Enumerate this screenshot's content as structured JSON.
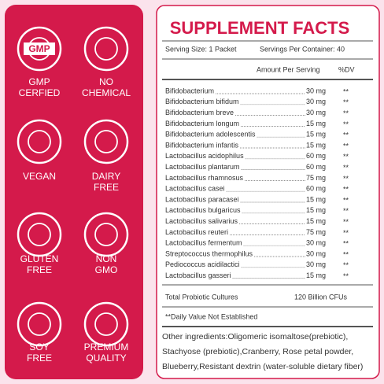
{
  "badges": [
    {
      "lines": [
        "GMP",
        "CERFIED"
      ],
      "icon_text": "GMP"
    },
    {
      "lines": [
        "NO",
        "CHEMICAL"
      ]
    },
    {
      "lines": [
        "VEGAN"
      ]
    },
    {
      "lines": [
        "DAIRY",
        "FREE"
      ]
    },
    {
      "lines": [
        "GLUTEN",
        "FREE"
      ]
    },
    {
      "lines": [
        "NON",
        "GMO"
      ]
    },
    {
      "lines": [
        "SOY",
        "FREE"
      ]
    },
    {
      "lines": [
        "PREMIUM",
        "QUALITY"
      ]
    }
  ],
  "facts": {
    "title": "SUPPLEMENT FACTS",
    "serving_size": "Serving Size: 1 Packet",
    "servings_per_container": "Servings Per Container: 40",
    "amount_header": "Amount Per Serving",
    "dv_header": "%DV",
    "rows": [
      [
        "Bifidobacterium",
        "30 mg",
        "**"
      ],
      [
        "Bifidobacterium bifidum",
        "30 mg",
        "**"
      ],
      [
        "Bifidobacterium breve",
        "30 mg",
        "**"
      ],
      [
        "Bifidobacterium longum",
        "15 mg",
        "**"
      ],
      [
        "Bifidobacterium adolescentis",
        "15 mg",
        "**"
      ],
      [
        "Bifidobacterium infantis",
        "15 mg",
        "**"
      ],
      [
        "Lactobacillus acidophilus",
        "60 mg",
        "**"
      ],
      [
        "Lactobacillus plantarum",
        "60 mg",
        "**"
      ],
      [
        "Lactobacillus rhamnosus",
        "75 mg",
        "**"
      ],
      [
        "Lactobacillus casei",
        "60 mg",
        "**"
      ],
      [
        "Lactobacillus paracasei",
        "15 mg",
        "**"
      ],
      [
        "Lactobacillus bulgaricus",
        "15 mg",
        "**"
      ],
      [
        "Lactobacillus salivarius",
        "15 mg",
        "**"
      ],
      [
        "Lactobacillus reuteri",
        "75 mg",
        "**"
      ],
      [
        "Lactobacillus fermentum",
        "30 mg",
        "**"
      ],
      [
        "Streptococcus thermophilus",
        "30 mg",
        "**"
      ],
      [
        "Pediococcus acidilactici",
        "30 mg",
        "**"
      ],
      [
        "Lactobacillus gasseri",
        "15 mg",
        "**"
      ]
    ],
    "total_label": "Total Probiotic Cultures",
    "total_value": "120 Billion CFUs",
    "footnote": "**Daily Value Not Established",
    "other_ingredients": [
      "Other ingredients:Oligomeric isomaltose(prebiotic),",
      "Stachyose (prebiotic),Cranberry, Rose petal powder,",
      "Blueberry,Resistant dextrin (water-soluble dietary fiber)"
    ]
  }
}
